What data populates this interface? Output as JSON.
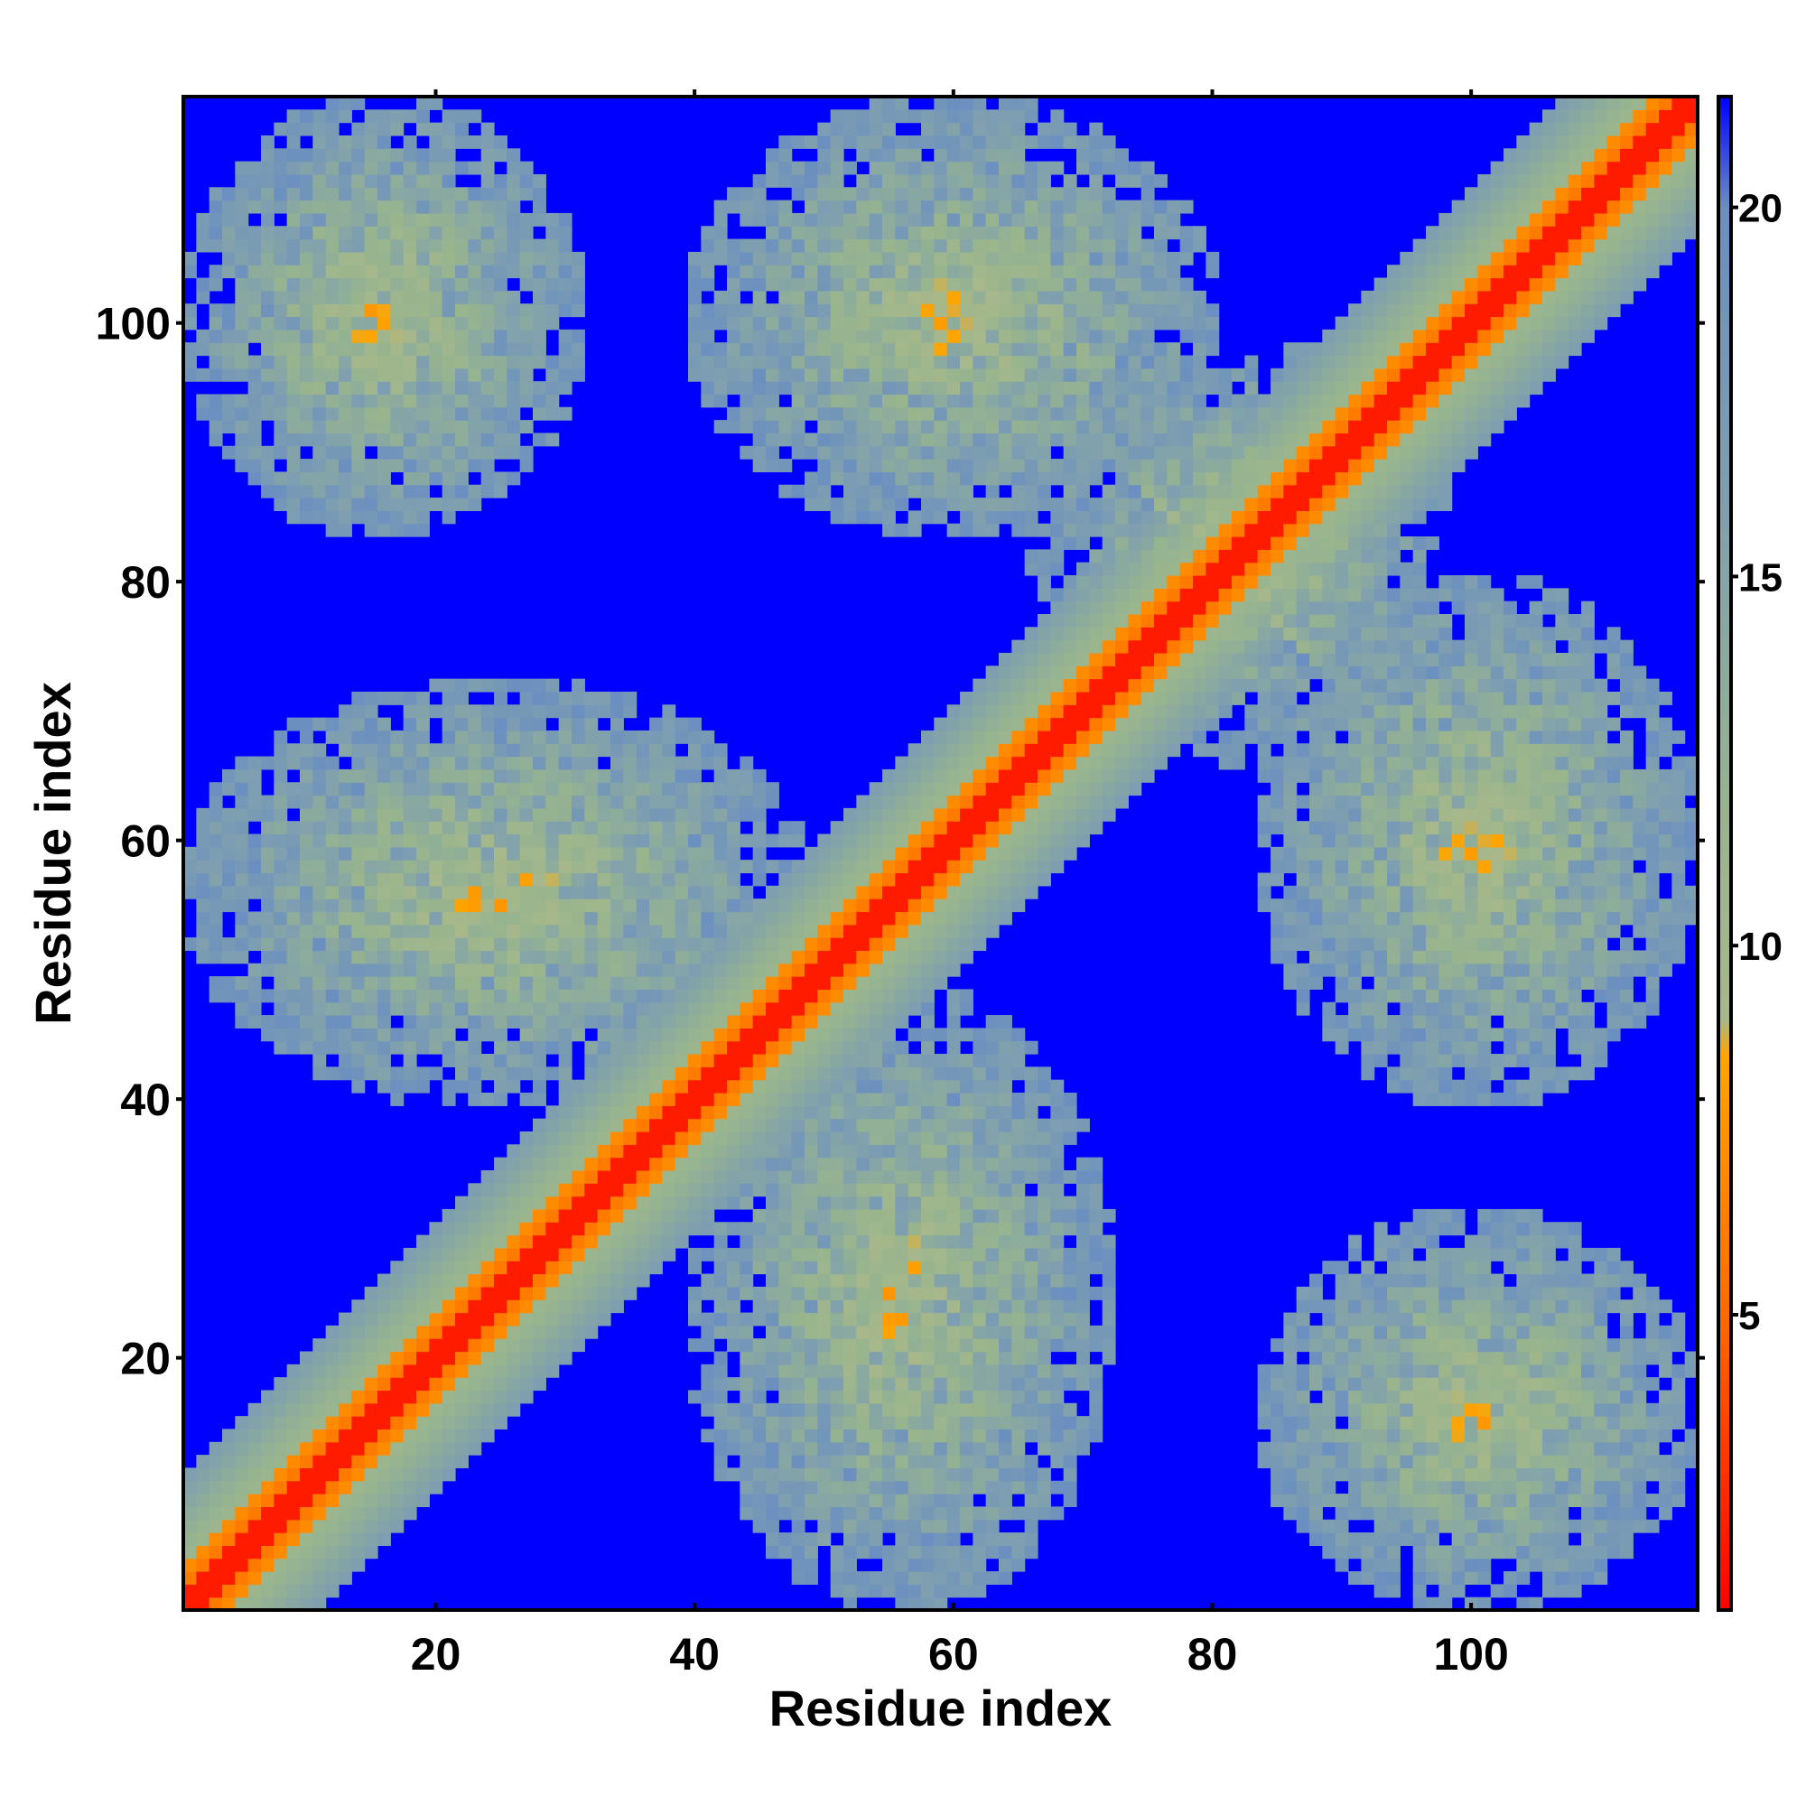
{
  "chart_data": {
    "type": "heatmap",
    "title": "",
    "xlabel": "Residue index",
    "ylabel": "Residue index",
    "n": 117,
    "xlim": [
      1,
      117
    ],
    "ylim": [
      1,
      117
    ],
    "xticks": [
      20,
      40,
      60,
      80,
      100
    ],
    "yticks": [
      20,
      40,
      60,
      80,
      100
    ],
    "colorbar": {
      "range": [
        1,
        21.5
      ],
      "ticks": [
        5,
        10,
        15,
        20
      ],
      "stops": [
        {
          "value": 1,
          "color": "#ff0000"
        },
        {
          "value": 5,
          "color": "#ff6a00"
        },
        {
          "value": 8.5,
          "color": "#ffa500"
        },
        {
          "value": 9,
          "color": "#a8b88a"
        },
        {
          "value": 12,
          "color": "#96b48f"
        },
        {
          "value": 16,
          "color": "#7f9fb0"
        },
        {
          "value": 20,
          "color": "#6a8fc0"
        },
        {
          "value": 21.5,
          "color": "#0000ff"
        }
      ]
    },
    "out_of_range_color": "#0000ff",
    "cutoff": 20,
    "matrix_description_note": "",
    "structure": {
      "diagonal_band": {
        "center_offset": 0,
        "half_width_residues": 10
      },
      "off_diagonal_bands": [
        {
          "i_range": [
            1,
            31
          ],
          "j_range": [
            84,
            117
          ]
        },
        {
          "i_range": [
            1,
            48
          ],
          "j_range": [
            40,
            72
          ]
        },
        {
          "i_range": [
            40,
            72
          ],
          "j_range": [
            1,
            48
          ]
        },
        {
          "i_range": [
            84,
            117
          ],
          "j_range": [
            1,
            31
          ]
        },
        {
          "i_range": [
            40,
            80
          ],
          "j_range": [
            84,
            117
          ]
        },
        {
          "i_range": [
            84,
            117
          ],
          "j_range": [
            40,
            80
          ]
        },
        {
          "i_range": [
            72,
            96
          ],
          "j_range": [
            66,
            98
          ]
        }
      ]
    }
  }
}
